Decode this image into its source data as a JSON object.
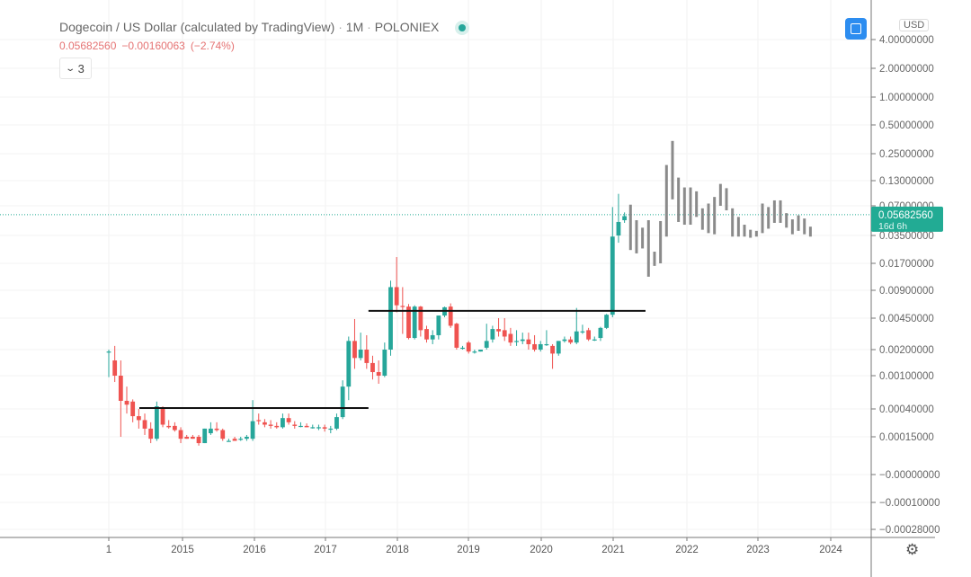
{
  "header": {
    "title": "Dogecoin / US Dollar (calculated by TradingView)",
    "interval": "1M",
    "exchange": "POLONIEX",
    "last_price": "0.05682560",
    "change": "−0.00160063",
    "change_pct": "(−2.74%)",
    "indicators_count": "3"
  },
  "currency_label": "USD",
  "price_tag": {
    "price": "0.05682560",
    "countdown": "16d 6h"
  },
  "colors": {
    "up": "#26a69a",
    "down": "#ef5350",
    "projection": "#8a8a8a",
    "tag": "#22ab94",
    "accent": "#2d8df0"
  },
  "icons": {
    "layout": "square-icon",
    "settings": "gear-icon",
    "collapse": "chevron-down-icon"
  },
  "chart_data": {
    "type": "candlestick",
    "title": "Dogecoin / US Dollar (calculated by TradingView) · 1M · POLONIEX",
    "scale": "log",
    "y_ticks": [
      {
        "label": "4.00000000",
        "value": 4
      },
      {
        "label": "2.00000000",
        "value": 2
      },
      {
        "label": "1.00000000",
        "value": 1
      },
      {
        "label": "0.50000000",
        "value": 0.5
      },
      {
        "label": "0.25000000",
        "value": 0.25
      },
      {
        "label": "0.13000000",
        "value": 0.13
      },
      {
        "label": "0.07000000",
        "value": 0.07
      },
      {
        "label": "0.03500000",
        "value": 0.035
      },
      {
        "label": "0.01700000",
        "value": 0.017
      },
      {
        "label": "0.00900000",
        "value": 0.009
      },
      {
        "label": "0.00450000",
        "value": 0.0045
      },
      {
        "label": "0.00200000",
        "value": 0.002
      },
      {
        "label": "0.00100000",
        "value": 0.001
      },
      {
        "label": "0.00040000",
        "value": 0.0004
      },
      {
        "label": "0.00015000",
        "value": 0.00015
      },
      {
        "label": "−0.00000000",
        "value": null
      },
      {
        "label": "−0.00010000",
        "value": null
      },
      {
        "label": "−0.00028000",
        "value": null
      }
    ],
    "x_ticks": [
      "1",
      "2015",
      "2016",
      "2017",
      "2018",
      "2019",
      "2020",
      "2021",
      "2022",
      "2023",
      "2024"
    ],
    "start_month": "2014-01",
    "ohlc": [
      [
        0.0019,
        0.002,
        0.00096,
        0.0019
      ],
      [
        0.0015,
        0.0022,
        0.00084,
        0.001
      ],
      [
        0.001,
        0.0015,
        0.00015,
        0.0005
      ],
      [
        0.0005,
        0.00074,
        0.00034,
        0.00045
      ],
      [
        0.00049,
        0.00052,
        0.00025,
        0.00031
      ],
      [
        0.00031,
        0.0004,
        0.0002,
        0.00027
      ],
      [
        0.00027,
        0.00034,
        0.00016,
        0.0002
      ],
      [
        0.0002,
        0.00025,
        0.00012,
        0.00014
      ],
      [
        0.00014,
        0.00049,
        0.00013,
        0.00043
      ],
      [
        0.00042,
        0.00043,
        0.00021,
        0.00023
      ],
      [
        0.00022,
        0.00027,
        0.0002,
        0.00021
      ],
      [
        0.00022,
        0.00025,
        0.00018,
        0.00019
      ],
      [
        0.00019,
        0.00021,
        0.00012,
        0.00014
      ],
      [
        0.00015,
        0.00016,
        0.00014,
        0.00014
      ],
      [
        0.00015,
        0.00016,
        0.00014,
        0.00014
      ],
      [
        0.00015,
        0.00016,
        0.00011,
        0.00012
      ],
      [
        0.00012,
        0.0002,
        0.00012,
        0.0002
      ],
      [
        0.00017,
        0.00025,
        0.00016,
        0.0002
      ],
      [
        0.0002,
        0.00025,
        0.00018,
        0.00019
      ],
      [
        0.00019,
        0.0002,
        0.00013,
        0.00014
      ],
      [
        0.00013,
        0.00014,
        0.00013,
        0.00013
      ],
      [
        0.00014,
        0.00015,
        0.00013,
        0.00013
      ],
      [
        0.00014,
        0.00015,
        0.00013,
        0.00014
      ],
      [
        0.00014,
        0.00016,
        0.00013,
        0.00015
      ],
      [
        0.00014,
        0.00051,
        0.00013,
        0.00026
      ],
      [
        0.00027,
        0.00034,
        0.00023,
        0.00026
      ],
      [
        0.00025,
        0.00028,
        0.00021,
        0.00023
      ],
      [
        0.00023,
        0.00027,
        0.0002,
        0.00022
      ],
      [
        0.00022,
        0.00025,
        0.0002,
        0.00021
      ],
      [
        0.00021,
        0.00034,
        0.0002,
        0.00029
      ],
      [
        0.00029,
        0.00034,
        0.00023,
        0.00025
      ],
      [
        0.00023,
        0.00026,
        0.0002,
        0.00022
      ],
      [
        0.00022,
        0.00025,
        0.00021,
        0.00022
      ],
      [
        0.00022,
        0.00024,
        0.00021,
        0.00021
      ],
      [
        0.00021,
        0.00023,
        0.0002,
        0.00021
      ],
      [
        0.00021,
        0.00023,
        0.00019,
        0.00021
      ],
      [
        0.00021,
        0.00023,
        0.00018,
        0.0002
      ],
      [
        0.0002,
        0.00022,
        0.00017,
        0.0002
      ],
      [
        0.0002,
        0.00034,
        0.00019,
        0.0003
      ],
      [
        0.0003,
        0.00088,
        0.00028,
        0.00074
      ],
      [
        0.00074,
        0.0028,
        0.00051,
        0.0025
      ],
      [
        0.0025,
        0.0044,
        0.0012,
        0.0016
      ],
      [
        0.0016,
        0.0031,
        0.0015,
        0.002
      ],
      [
        0.002,
        0.0029,
        0.0012,
        0.0014
      ],
      [
        0.0014,
        0.0017,
        0.0009,
        0.0011
      ],
      [
        0.0011,
        0.0015,
        0.0008,
        0.001
      ],
      [
        0.001,
        0.0024,
        0.00096,
        0.002
      ],
      [
        0.002,
        0.0113,
        0.0017,
        0.0097
      ],
      [
        0.0097,
        0.02,
        0.0052,
        0.0062
      ],
      [
        0.0061,
        0.0097,
        0.003,
        0.006
      ],
      [
        0.006,
        0.0064,
        0.0026,
        0.0027
      ],
      [
        0.0027,
        0.0062,
        0.0026,
        0.006
      ],
      [
        0.006,
        0.0061,
        0.0028,
        0.0033
      ],
      [
        0.0034,
        0.0037,
        0.0024,
        0.0026
      ],
      [
        0.0026,
        0.0033,
        0.0023,
        0.0029
      ],
      [
        0.0029,
        0.0048,
        0.0026,
        0.0048
      ],
      [
        0.0048,
        0.006,
        0.0046,
        0.0059
      ],
      [
        0.006,
        0.0065,
        0.0035,
        0.0037
      ],
      [
        0.0039,
        0.004,
        0.002,
        0.0021
      ],
      [
        0.0021,
        0.0022,
        0.002,
        0.0021
      ],
      [
        0.0024,
        0.0025,
        0.0018,
        0.0019
      ],
      [
        0.0019,
        0.002,
        0.0018,
        0.0019
      ],
      [
        0.0019,
        0.002,
        0.0019,
        0.002
      ],
      [
        0.0021,
        0.0039,
        0.002,
        0.0025
      ],
      [
        0.0026,
        0.0037,
        0.0024,
        0.0034
      ],
      [
        0.0034,
        0.0045,
        0.0028,
        0.0032
      ],
      [
        0.0033,
        0.0045,
        0.0025,
        0.0028
      ],
      [
        0.003,
        0.0035,
        0.0022,
        0.0024
      ],
      [
        0.0025,
        0.0033,
        0.0022,
        0.0025
      ],
      [
        0.0025,
        0.0031,
        0.0023,
        0.0026
      ],
      [
        0.0026,
        0.0031,
        0.002,
        0.0023
      ],
      [
        0.0023,
        0.0029,
        0.0019,
        0.002
      ],
      [
        0.002,
        0.0025,
        0.0019,
        0.0023
      ],
      [
        0.0023,
        0.0033,
        0.0022,
        0.0023
      ],
      [
        0.0022,
        0.0023,
        0.0012,
        0.0018
      ],
      [
        0.0018,
        0.0025,
        0.0017,
        0.0025
      ],
      [
        0.0025,
        0.0028,
        0.0024,
        0.0026
      ],
      [
        0.0026,
        0.0028,
        0.0023,
        0.0024
      ],
      [
        0.0024,
        0.0058,
        0.0023,
        0.0032
      ],
      [
        0.0032,
        0.0038,
        0.003,
        0.0032
      ],
      [
        0.0033,
        0.0035,
        0.0025,
        0.0026
      ],
      [
        0.0026,
        0.0028,
        0.0025,
        0.0026
      ],
      [
        0.0027,
        0.0036,
        0.0025,
        0.0035
      ],
      [
        0.0035,
        0.005,
        0.0034,
        0.0049
      ],
      [
        0.0049,
        0.068,
        0.0046,
        0.034
      ],
      [
        0.035,
        0.094,
        0.029,
        0.048
      ],
      [
        0.05,
        0.06,
        0.047,
        0.055
      ]
    ],
    "projection_start_month": "2021-04",
    "projection_high_low": [
      [
        0.072,
        0.024
      ],
      [
        0.05,
        0.022
      ],
      [
        0.042,
        0.025
      ],
      [
        0.05,
        0.0124
      ],
      [
        0.023,
        0.016
      ],
      [
        0.049,
        0.017
      ],
      [
        0.19,
        0.034
      ],
      [
        0.34,
        0.082
      ],
      [
        0.14,
        0.048
      ],
      [
        0.11,
        0.045
      ],
      [
        0.11,
        0.045
      ],
      [
        0.1,
        0.054
      ],
      [
        0.066,
        0.04
      ],
      [
        0.074,
        0.037
      ],
      [
        0.087,
        0.036
      ],
      [
        0.12,
        0.07
      ],
      [
        0.108,
        0.063
      ],
      [
        0.066,
        0.034
      ],
      [
        0.054,
        0.034
      ],
      [
        0.045,
        0.034
      ],
      [
        0.04,
        0.033
      ],
      [
        0.039,
        0.034
      ],
      [
        0.074,
        0.037
      ],
      [
        0.068,
        0.041
      ],
      [
        0.08,
        0.047
      ],
      [
        0.08,
        0.047
      ],
      [
        0.059,
        0.042
      ],
      [
        0.051,
        0.036
      ],
      [
        0.056,
        0.039
      ],
      [
        0.052,
        0.036
      ],
      [
        0.043,
        0.034
      ]
    ],
    "annotations": [
      {
        "type": "horizontal-line",
        "price": 0.00041,
        "from_month_index": 5.1,
        "to_month_index": 43.3
      },
      {
        "type": "horizontal-line",
        "price": 0.0054,
        "from_month_index": 43.3,
        "to_month_index": 89.5
      }
    ],
    "current_price": 0.0568256,
    "grid": true
  }
}
